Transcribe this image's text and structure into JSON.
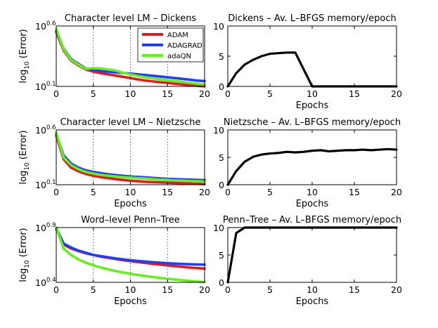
{
  "chart_data": [
    {
      "type": "line",
      "title": "Character level LM –  Dickens",
      "xlabel": "",
      "ylabel": "log",
      "ylabel_sub": "10",
      "ylabel_rest": " (Error)",
      "yscale": "log",
      "xlim": [
        0,
        20
      ],
      "ylim": [
        0.1,
        0.6
      ],
      "x_ticks": [
        "0",
        "5",
        "10",
        "15",
        "20"
      ],
      "y_ticks": [
        {
          "base": "10",
          "exp": "0.6"
        },
        {
          "base": "10",
          "exp": "0.1"
        }
      ],
      "grid": "dotted-x",
      "legend": {
        "placement": "top-right",
        "entries": [
          "ADAM",
          "ADAGRAD",
          "adaQN"
        ]
      },
      "x": [
        0,
        1,
        2,
        3,
        4,
        5,
        6,
        7,
        8,
        9,
        10,
        11,
        12,
        13,
        14,
        15,
        16,
        17,
        18,
        19,
        20
      ],
      "series": [
        {
          "name": "ADAM",
          "color": "#e31a1c",
          "values": [
            0.5,
            0.29,
            0.215,
            0.186,
            0.165,
            0.155,
            0.148,
            0.143,
            0.138,
            0.133,
            0.128,
            0.123,
            0.119,
            0.116,
            0.113,
            0.111,
            0.108,
            0.106,
            0.104,
            0.102,
            0.1
          ]
        },
        {
          "name": "ADAGRAD",
          "color": "#1f3ff0",
          "values": [
            0.52,
            0.305,
            0.225,
            0.195,
            0.17,
            0.162,
            0.158,
            0.155,
            0.152,
            0.149,
            0.146,
            0.143,
            0.14,
            0.137,
            0.134,
            0.131,
            0.128,
            0.125,
            0.122,
            0.119,
            0.117
          ]
        },
        {
          "name": "adaQN",
          "color": "#66ee22",
          "values": [
            0.55,
            0.3,
            0.22,
            0.19,
            0.168,
            0.172,
            0.17,
            0.165,
            0.16,
            0.15,
            0.142,
            0.136,
            0.131,
            0.127,
            0.123,
            0.12,
            0.117,
            0.114,
            0.111,
            0.108,
            0.106
          ]
        }
      ]
    },
    {
      "type": "line",
      "title": "Dickens – Av. L–BFGS memory/epoch",
      "xlabel": "Epochs",
      "ylabel": "",
      "yscale": "linear",
      "xlim": [
        0,
        20
      ],
      "ylim": [
        0,
        10
      ],
      "x_ticks": [
        "0",
        "5",
        "10",
        "15",
        "20"
      ],
      "y_ticks": [
        "10",
        "5",
        "0"
      ],
      "x": [
        0,
        1,
        2,
        3,
        4,
        5,
        6,
        7,
        8,
        9,
        10,
        11,
        12,
        13,
        14,
        15,
        16,
        17,
        18,
        19,
        20
      ],
      "series": [
        {
          "name": "memory",
          "color": "#000000",
          "values": [
            0,
            2.2,
            3.6,
            4.4,
            5.0,
            5.4,
            5.5,
            5.6,
            5.6,
            2.8,
            0,
            0,
            0,
            0,
            0,
            0,
            0,
            0,
            0,
            0,
            0
          ]
        }
      ]
    },
    {
      "type": "line",
      "title": "Character level LM –  Nietzsche",
      "xlabel": "Epochs",
      "ylabel": "log",
      "ylabel_sub": "10",
      "ylabel_rest": " (Error)",
      "yscale": "log",
      "xlim": [
        0,
        20
      ],
      "ylim": [
        0.1,
        0.6
      ],
      "x_ticks": [
        "0",
        "5",
        "10",
        "15",
        "20"
      ],
      "y_ticks": [
        {
          "base": "10",
          "exp": "0.6"
        },
        {
          "base": "10",
          "exp": "0.1"
        }
      ],
      "grid": "dotted-x",
      "x": [
        0,
        1,
        2,
        3,
        4,
        5,
        6,
        7,
        8,
        9,
        10,
        11,
        12,
        13,
        14,
        15,
        16,
        17,
        18,
        19,
        20
      ],
      "series": [
        {
          "name": "ADAM",
          "color": "#e31a1c",
          "values": [
            0.5,
            0.23,
            0.175,
            0.155,
            0.142,
            0.134,
            0.128,
            0.124,
            0.12,
            0.117,
            0.114,
            0.112,
            0.11,
            0.109,
            0.108,
            0.107,
            0.106,
            0.105,
            0.104,
            0.103,
            0.102
          ]
        },
        {
          "name": "ADAGRAD",
          "color": "#1f3ff0",
          "values": [
            0.53,
            0.26,
            0.2,
            0.175,
            0.16,
            0.152,
            0.146,
            0.141,
            0.137,
            0.134,
            0.131,
            0.129,
            0.127,
            0.125,
            0.123,
            0.121,
            0.12,
            0.119,
            0.118,
            0.117,
            0.116
          ]
        },
        {
          "name": "adaQN",
          "color": "#66ee22",
          "values": [
            0.55,
            0.245,
            0.19,
            0.166,
            0.152,
            0.144,
            0.138,
            0.134,
            0.131,
            0.128,
            0.126,
            0.124,
            0.122,
            0.12,
            0.118,
            0.117,
            0.115,
            0.114,
            0.113,
            0.112,
            0.111
          ]
        }
      ]
    },
    {
      "type": "line",
      "title": "Nietzsche – Av. L–BFGS memory/epoch",
      "xlabel": "Epochs",
      "ylabel": "",
      "yscale": "linear",
      "xlim": [
        0,
        20
      ],
      "ylim": [
        0,
        10
      ],
      "x_ticks": [
        "0",
        "5",
        "10",
        "15",
        "20"
      ],
      "y_ticks": [
        "10",
        "5",
        "0"
      ],
      "x": [
        0,
        1,
        2,
        3,
        4,
        5,
        6,
        7,
        8,
        9,
        10,
        11,
        12,
        13,
        14,
        15,
        16,
        17,
        18,
        19,
        20
      ],
      "series": [
        {
          "name": "memory",
          "color": "#000000",
          "values": [
            0,
            2.5,
            4.2,
            5.1,
            5.5,
            5.7,
            5.8,
            6.0,
            5.9,
            6.0,
            6.2,
            6.3,
            6.1,
            6.2,
            6.3,
            6.3,
            6.4,
            6.3,
            6.4,
            6.5,
            6.4
          ]
        }
      ]
    },
    {
      "type": "line",
      "title": "Word–level Penn–Tree",
      "xlabel": "Epochs",
      "ylabel": "log",
      "ylabel_sub": "10",
      "ylabel_rest": " (Error)",
      "yscale": "log",
      "xlim": [
        0,
        20
      ],
      "ylim": [
        0.4,
        0.9
      ],
      "x_ticks": [
        "0",
        "5",
        "10",
        "15",
        "20"
      ],
      "y_ticks": [
        {
          "base": "10",
          "exp": "0.9"
        },
        {
          "base": "10",
          "exp": "0.4"
        }
      ],
      "grid": "dotted-x",
      "x": [
        0,
        1,
        2,
        3,
        4,
        5,
        6,
        7,
        8,
        9,
        10,
        11,
        12,
        13,
        14,
        15,
        16,
        17,
        18,
        19,
        20
      ],
      "series": [
        {
          "name": "ADAM",
          "color": "#e31a1c",
          "values": [
            0.88,
            0.7,
            0.66,
            0.635,
            0.615,
            0.6,
            0.585,
            0.575,
            0.565,
            0.555,
            0.548,
            0.54,
            0.533,
            0.526,
            0.52,
            0.514,
            0.508,
            0.503,
            0.498,
            0.494,
            0.49
          ]
        },
        {
          "name": "ADAGRAD",
          "color": "#1f3ff0",
          "values": [
            0.89,
            0.71,
            0.67,
            0.64,
            0.62,
            0.6,
            0.59,
            0.58,
            0.57,
            0.562,
            0.555,
            0.549,
            0.544,
            0.539,
            0.535,
            0.531,
            0.528,
            0.525,
            0.523,
            0.521,
            0.52
          ]
        },
        {
          "name": "adaQN",
          "color": "#66ee22",
          "values": [
            0.9,
            0.66,
            0.6,
            0.562,
            0.535,
            0.515,
            0.498,
            0.485,
            0.473,
            0.463,
            0.454,
            0.446,
            0.439,
            0.433,
            0.427,
            0.422,
            0.417,
            0.413,
            0.409,
            0.405,
            0.402
          ]
        }
      ]
    },
    {
      "type": "line",
      "title": "Penn–Tree – Av. L–BFGS memory/epoch",
      "xlabel": "Epochs",
      "ylabel": "",
      "yscale": "linear",
      "xlim": [
        0,
        20
      ],
      "ylim": [
        0,
        10
      ],
      "x_ticks": [
        "0",
        "5",
        "10",
        "15",
        "20"
      ],
      "y_ticks": [
        "10",
        "5",
        "0"
      ],
      "x": [
        0,
        1,
        2,
        3,
        4,
        5,
        6,
        7,
        8,
        9,
        10,
        11,
        12,
        13,
        14,
        15,
        16,
        17,
        18,
        19,
        20
      ],
      "series": [
        {
          "name": "memory",
          "color": "#000000",
          "values": [
            0,
            9.0,
            10,
            10,
            10,
            10,
            10,
            10,
            10,
            10,
            10,
            10,
            10,
            10,
            10,
            10,
            10,
            10,
            10,
            10,
            10
          ]
        }
      ]
    }
  ]
}
